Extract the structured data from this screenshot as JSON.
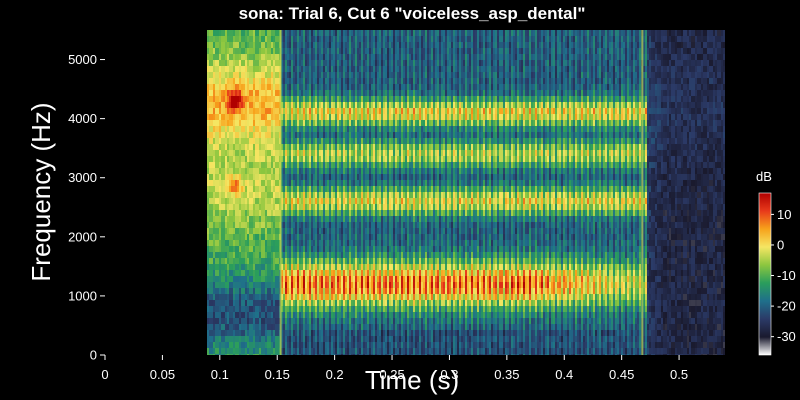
{
  "chart_data": {
    "type": "heatmap",
    "title": "sona: Trial 6, Cut 6 \"voiceless_asp_dental\"",
    "xlabel": "Time (s)",
    "ylabel": "Frequency (Hz)",
    "xlim": [
      0,
      0.54
    ],
    "ylim": [
      0,
      5500
    ],
    "x_ticks": [
      "0",
      "0.05",
      "0.1",
      "0.15",
      "0.2",
      "0.25",
      "0.3",
      "0.35",
      "0.4",
      "0.45",
      "0.5"
    ],
    "y_ticks": [
      "0",
      "1000",
      "2000",
      "3000",
      "4000",
      "5000"
    ],
    "signal_time_range_s": [
      0.088,
      0.54
    ],
    "voicing_onset_s": 0.153,
    "voicing_offset_s": 0.468,
    "colorbar": {
      "label": "dB",
      "range": [
        -36,
        17
      ],
      "ticks": [
        "10",
        "0",
        "-10",
        "-20",
        "-30"
      ],
      "colors": [
        "#ffffff",
        "#1a1a2e",
        "#2b3a67",
        "#1f6f8b",
        "#2a9d5c",
        "#8cc63f",
        "#f5e663",
        "#f7a21b",
        "#e83a1b",
        "#b00000"
      ]
    },
    "formants_hz": [
      {
        "band": "low",
        "center": 1200,
        "level_db": 12
      },
      {
        "band": "mid",
        "center": 2600,
        "level_db": 2
      },
      {
        "band": "upper",
        "center": 3400,
        "level_db": -2
      },
      {
        "band": "high",
        "center": 4100,
        "level_db": 3
      }
    ],
    "burst_hotspots": [
      {
        "time_s": 0.113,
        "freq_hz": 4300,
        "level_db": 16
      },
      {
        "time_s": 0.113,
        "freq_hz": 2850,
        "level_db": 8
      }
    ]
  }
}
